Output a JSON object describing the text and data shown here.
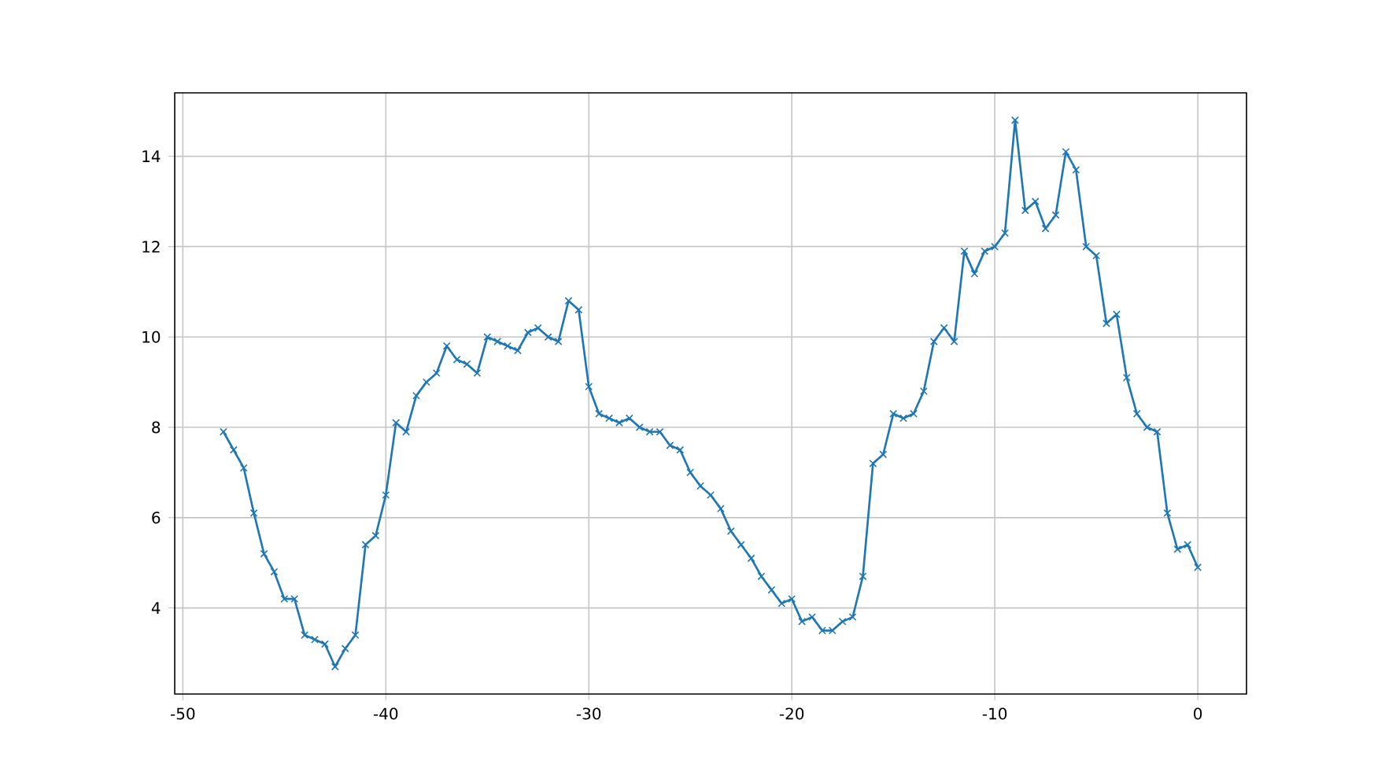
{
  "chart_data": {
    "type": "line",
    "color": "#1f77b4",
    "marker": "cross",
    "line_style": "solid",
    "grid": true,
    "x": [
      -48,
      -47.5,
      -47,
      -46.5,
      -46,
      -45.5,
      -45,
      -44.5,
      -44,
      -43.5,
      -43,
      -42.5,
      -42,
      -41.5,
      -41,
      -40.5,
      -40,
      -39.5,
      -39,
      -38.5,
      -38,
      -37.5,
      -37,
      -36.5,
      -36,
      -35.5,
      -35,
      -34.5,
      -34,
      -33.5,
      -33,
      -32.5,
      -32,
      -31.5,
      -31,
      -30.5,
      -30,
      -29.5,
      -29,
      -28.5,
      -28,
      -27.5,
      -27,
      -26.5,
      -26,
      -25.5,
      -25,
      -24.5,
      -24,
      -23.5,
      -23,
      -22.5,
      -22,
      -21.5,
      -21,
      -20.5,
      -20,
      -19.5,
      -19,
      -18.5,
      -18,
      -17.5,
      -17,
      -16.5,
      -16,
      -15.5,
      -15,
      -14.5,
      -14,
      -13.5,
      -13,
      -12.5,
      -12,
      -11.5,
      -11,
      -10.5,
      -10,
      -9.5,
      -9,
      -8.5,
      -8,
      -7.5,
      -7,
      -6.5,
      -6,
      -5.5,
      -5,
      -4.5,
      -4,
      -3.5,
      -3,
      -2.5,
      -2,
      -1.5,
      -1,
      -0.5,
      0
    ],
    "values": [
      7.9,
      7.5,
      7.1,
      6.1,
      5.2,
      4.8,
      4.2,
      4.2,
      3.4,
      3.3,
      3.2,
      2.7,
      3.1,
      3.4,
      5.4,
      5.6,
      6.5,
      8.1,
      7.9,
      8.7,
      9.0,
      9.2,
      9.8,
      9.5,
      9.4,
      9.2,
      10.0,
      9.9,
      9.8,
      9.7,
      10.1,
      10.2,
      10.0,
      9.9,
      10.8,
      10.6,
      8.9,
      8.3,
      8.2,
      8.1,
      8.2,
      8.0,
      7.9,
      7.9,
      7.6,
      7.5,
      7.0,
      6.7,
      6.5,
      6.2,
      5.7,
      5.4,
      5.1,
      4.7,
      4.4,
      4.1,
      4.2,
      3.7,
      3.8,
      3.5,
      3.5,
      3.7,
      3.8,
      4.7,
      7.2,
      7.4,
      8.3,
      8.2,
      8.3,
      8.8,
      9.9,
      10.2,
      9.9,
      11.9,
      11.4,
      11.9,
      12.0,
      12.3,
      14.8,
      12.8,
      13.0,
      12.4,
      12.7,
      14.1,
      13.7,
      12.0,
      11.8,
      10.3,
      10.5,
      9.1,
      8.3,
      8.0,
      7.9,
      6.1,
      5.3,
      5.4,
      4.9
    ],
    "xlim": [
      -50.4,
      2.4
    ],
    "ylim": [
      2.095,
      15.405
    ],
    "xticks": [
      -50,
      -40,
      -30,
      -20,
      -10,
      0
    ],
    "yticks": [
      4,
      6,
      8,
      10,
      12,
      14
    ]
  }
}
